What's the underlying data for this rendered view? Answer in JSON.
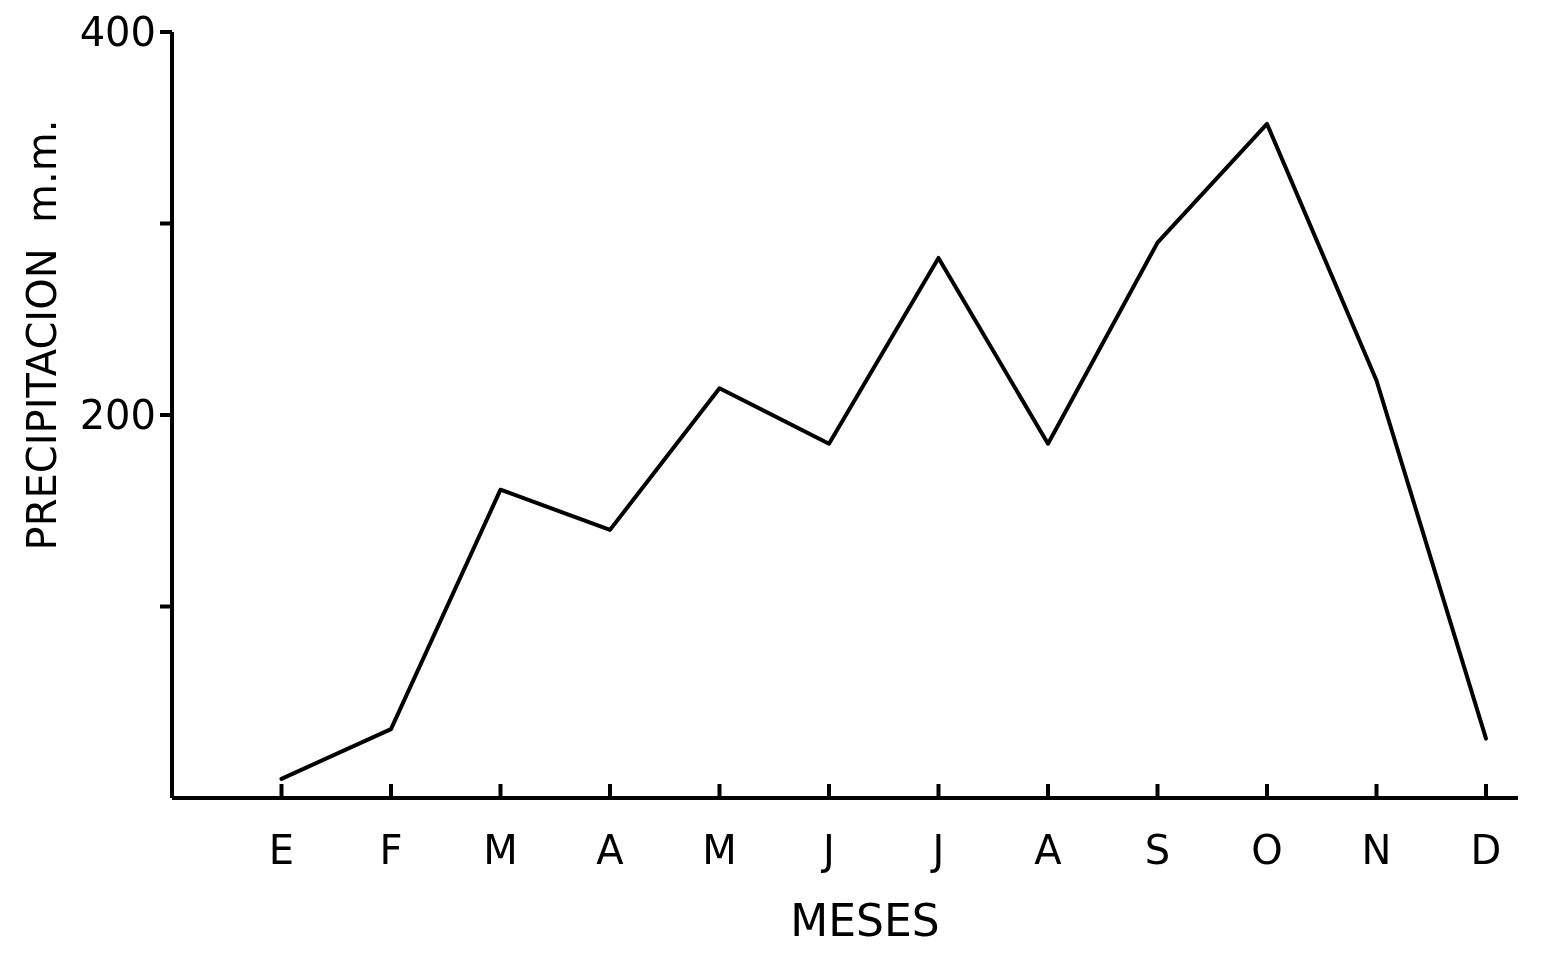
{
  "chart_data": {
    "type": "line",
    "xlabel": "MESES",
    "ylabel": "PRECIPITACION  m.m.",
    "categories": [
      null,
      "E",
      "F",
      "M",
      "A",
      "M",
      "J",
      "J",
      "A",
      "S",
      "O",
      "N",
      "D"
    ],
    "series": [
      {
        "color": "#000000",
        "values": [
          null,
          10,
          36,
          161,
          140,
          214,
          185,
          282,
          185,
          290,
          352,
          218,
          31
        ]
      }
    ],
    "ylim": [
      0,
      400
    ],
    "yticks": [
      {
        "value": 100,
        "label": null
      },
      200,
      {
        "value": 300,
        "label": null
      },
      400
    ],
    "grid": false,
    "marker": "none",
    "line_style": "solid"
  }
}
